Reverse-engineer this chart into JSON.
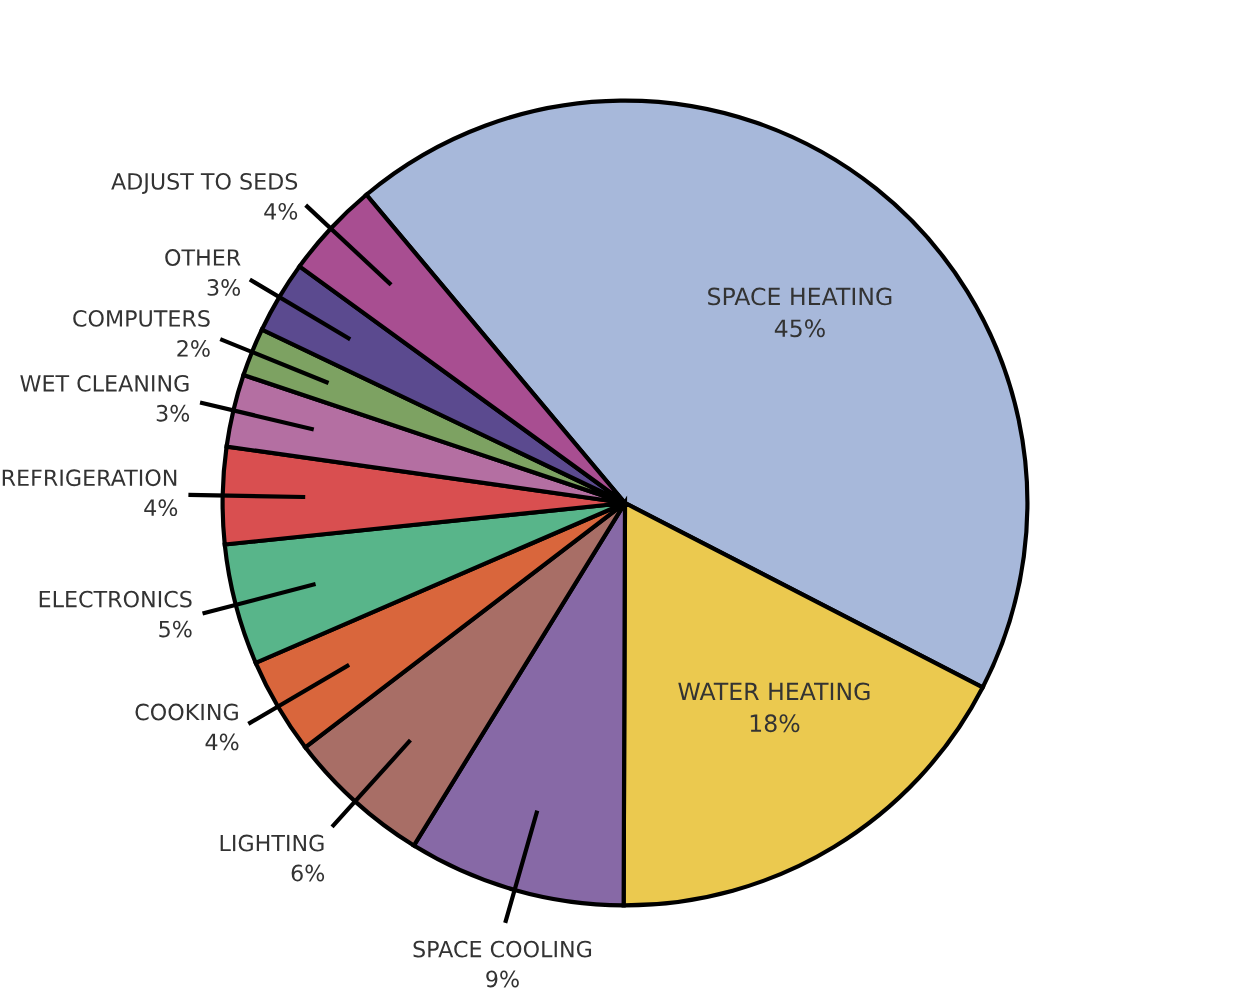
{
  "chart_data": {
    "type": "pie",
    "categories": [
      "SPACE HEATING",
      "WATER HEATING",
      "SPACE COOLING",
      "LIGHTING",
      "COOKING",
      "ELECTRONICS",
      "REFRIGERATION",
      "WET CLEANING",
      "COMPUTERS",
      "OTHER",
      "ADJUST TO SEDS"
    ],
    "values": [
      45,
      18,
      9,
      6,
      4,
      5,
      4,
      3,
      2,
      3,
      4
    ],
    "value_labels": [
      "45%",
      "18%",
      "9%",
      "6%",
      "4%",
      "5%",
      "4%",
      "3%",
      "2%",
      "3%",
      "4%"
    ],
    "colors": [
      "#a7b8da",
      "#ebc94f",
      "#8769a6",
      "#a86e66",
      "#d9663c",
      "#58b58a",
      "#d94f50",
      "#b46fa2",
      "#7da262",
      "#5b4a8f",
      "#a84e91"
    ]
  }
}
